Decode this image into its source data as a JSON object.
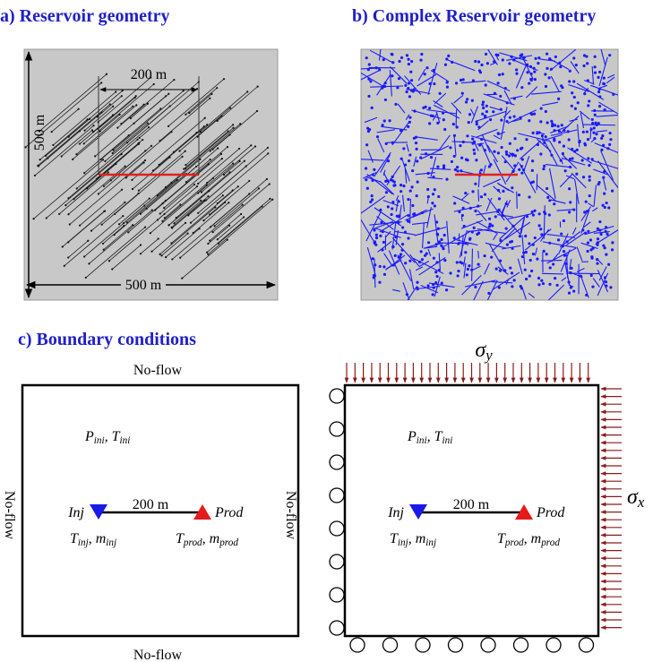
{
  "panel_a": {
    "title": "a) Reservoir geometry",
    "spacing_label": "200 m",
    "height_label": "500 m",
    "width_label": "500 m"
  },
  "panel_b": {
    "title": "b) Complex Reservoir geometry"
  },
  "panel_c": {
    "title": "c) Boundary conditions",
    "flow_model": {
      "top": "No-flow",
      "bottom": "No-flow",
      "left": "No-flow",
      "right": "No-flow",
      "initial": [
        {
          "base": "P",
          "sub": "ini"
        },
        {
          "base": ", T",
          "sub": "ini"
        }
      ],
      "injector": "Inj",
      "producer": "Prod",
      "spacing_label": "200 m",
      "injector_conditions": [
        {
          "base": "T",
          "sub": "inj"
        },
        {
          "base": ", m",
          "sub": "inj"
        }
      ],
      "producer_conditions": [
        {
          "base": "T",
          "sub": "prod"
        },
        {
          "base": ", m",
          "sub": "prod"
        }
      ]
    },
    "mechanical_model": {
      "stress_y": {
        "base": "σ",
        "sub": "y"
      },
      "stress_x": {
        "base": "σ",
        "sub": "x"
      },
      "initial": [
        {
          "base": "P",
          "sub": "ini"
        },
        {
          "base": ", T",
          "sub": "ini"
        }
      ],
      "injector": "Inj",
      "producer": "Prod",
      "spacing_label": "200 m",
      "injector_conditions": [
        {
          "base": "T",
          "sub": "inj"
        },
        {
          "base": ", m",
          "sub": "inj"
        }
      ],
      "producer_conditions": [
        {
          "base": "T",
          "sub": "prod"
        },
        {
          "base": ", m",
          "sub": "prod"
        }
      ]
    }
  }
}
